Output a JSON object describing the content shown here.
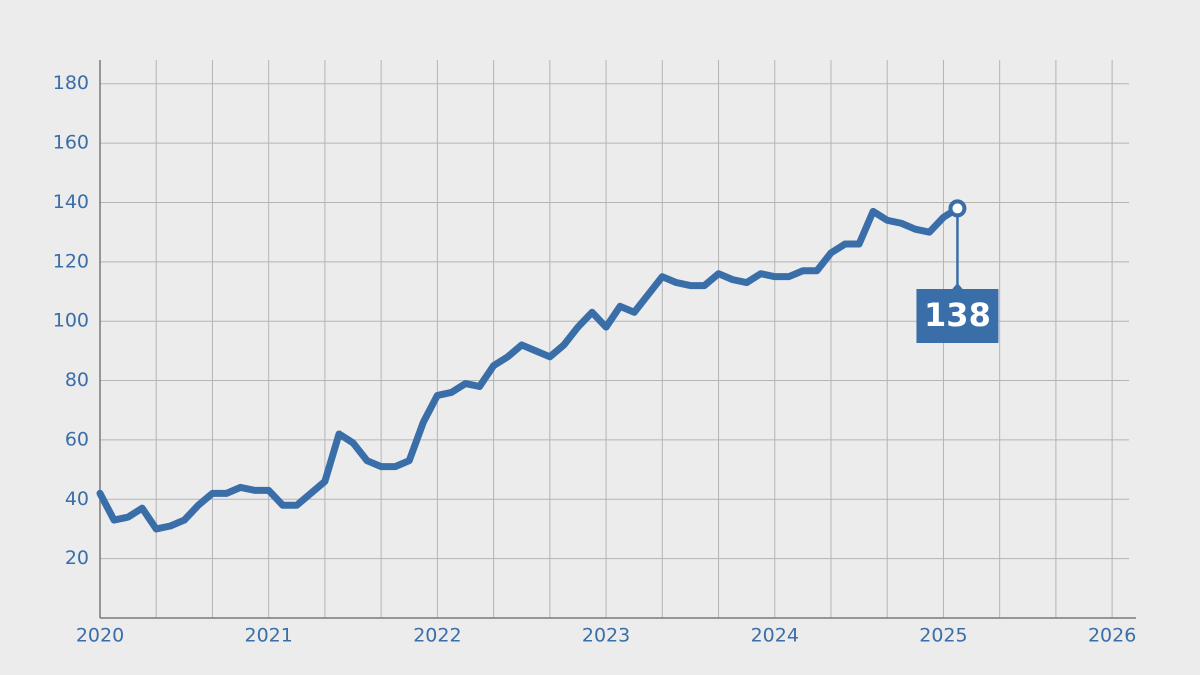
{
  "chart_data": {
    "type": "line",
    "x": [
      2020,
      2020.083,
      2020.167,
      2020.25,
      2020.333,
      2020.417,
      2020.5,
      2020.583,
      2020.667,
      2020.75,
      2020.833,
      2020.917,
      2021,
      2021.083,
      2021.167,
      2021.25,
      2021.333,
      2021.417,
      2021.5,
      2021.583,
      2021.667,
      2021.75,
      2021.833,
      2021.917,
      2022,
      2022.083,
      2022.167,
      2022.25,
      2022.333,
      2022.417,
      2022.5,
      2022.583,
      2022.667,
      2022.75,
      2022.833,
      2022.917,
      2023,
      2023.083,
      2023.167,
      2023.25,
      2023.333,
      2023.417,
      2023.5,
      2023.583,
      2023.667,
      2023.75,
      2023.833,
      2023.917,
      2024,
      2024.083,
      2024.167,
      2024.25,
      2024.333,
      2024.417,
      2024.5,
      2024.583,
      2024.667,
      2024.75,
      2024.833,
      2024.917,
      2025,
      2025.083
    ],
    "series": [
      {
        "color": "#3a6ea9",
        "values": [
          42,
          33,
          34,
          37,
          30,
          31,
          33,
          38,
          42,
          42,
          44,
          43,
          43,
          38,
          38,
          42,
          46,
          62,
          59,
          53,
          51,
          51,
          53,
          66,
          75,
          76,
          79,
          78,
          85,
          88,
          92,
          90,
          88,
          92,
          98,
          103,
          98,
          105,
          103,
          109,
          115,
          113,
          112,
          112,
          116,
          114,
          113,
          116,
          115,
          115,
          117,
          117,
          123,
          126,
          126,
          137,
          134,
          133,
          131,
          130,
          135,
          138
        ]
      }
    ],
    "annotation": "138",
    "xlim": [
      2020,
      2026.1
    ],
    "xticks": [
      2020,
      2021,
      2022,
      2023,
      2024,
      2025,
      2026
    ],
    "x_grid_subdivisions": 3,
    "ylim": [
      0,
      188
    ],
    "yticks": [
      20,
      40,
      60,
      80,
      100,
      120,
      140,
      160,
      180
    ],
    "grid": true
  }
}
